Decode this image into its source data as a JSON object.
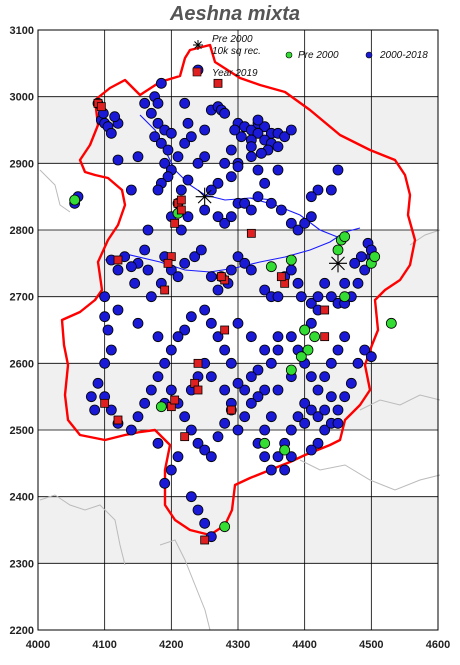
{
  "title": "Aeshna mixta",
  "axes": {
    "x_ticks": [
      "4000",
      "4100",
      "4200",
      "4300",
      "4400",
      "4500",
      "4600"
    ],
    "y_ticks": [
      "3100",
      "3000",
      "2900",
      "2800",
      "2700",
      "2600",
      "2500",
      "2400",
      "2300",
      "2200"
    ]
  },
  "legend": {
    "star_label_1": "Pre 2000",
    "star_label_2": "10k sq rec.",
    "green_label": "Pre 2000",
    "blue_label": "2000-2018",
    "red_label": "Year 2019"
  },
  "colors": {
    "boundary": "#ff0000",
    "river": "#1a1aff",
    "blue_dot": "#1a1ad6",
    "green_dot": "#33dd33",
    "red_square": "#e02020",
    "band": "#f0f0f0"
  },
  "chart_data": {
    "type": "scatter",
    "title": "Aeshna mixta",
    "xlim": [
      4000,
      4600
    ],
    "ylim": [
      2200,
      3100
    ],
    "grid": true,
    "series": [
      {
        "name": "2000-2018",
        "marker": "circle",
        "points": [
          [
            4090,
            2990
          ],
          [
            4095,
            2965
          ],
          [
            4100,
            2960
          ],
          [
            4105,
            2955
          ],
          [
            4098,
            2975
          ],
          [
            4110,
            2945
          ],
          [
            4120,
            2960
          ],
          [
            4115,
            2970
          ],
          [
            4175,
            3000
          ],
          [
            4180,
            2990
          ],
          [
            4170,
            2975
          ],
          [
            4180,
            2960
          ],
          [
            4190,
            2950
          ],
          [
            4200,
            2945
          ],
          [
            4175,
            2940
          ],
          [
            4185,
            2930
          ],
          [
            4195,
            2920
          ],
          [
            4210,
            2910
          ],
          [
            4190,
            2900
          ],
          [
            4200,
            2890
          ],
          [
            4220,
            2930
          ],
          [
            4225,
            2960
          ],
          [
            4230,
            2940
          ],
          [
            4250,
            2950
          ],
          [
            4260,
            2980
          ],
          [
            4270,
            2985
          ],
          [
            4275,
            2980
          ],
          [
            4280,
            2975
          ],
          [
            4220,
            2990
          ],
          [
            4240,
            3040
          ],
          [
            4185,
            3020
          ],
          [
            4160,
            2990
          ],
          [
            4300,
            2960
          ],
          [
            4310,
            2955
          ],
          [
            4320,
            2950
          ],
          [
            4330,
            2960
          ],
          [
            4340,
            2955
          ],
          [
            4350,
            2945
          ],
          [
            4330,
            2945
          ],
          [
            4320,
            2935
          ],
          [
            4340,
            2935
          ],
          [
            4350,
            2930
          ],
          [
            4360,
            2925
          ],
          [
            4345,
            2920
          ],
          [
            4335,
            2915
          ],
          [
            4320,
            2925
          ],
          [
            4360,
            2945
          ],
          [
            4370,
            2940
          ],
          [
            4380,
            2950
          ],
          [
            4330,
            2965
          ],
          [
            4305,
            2940
          ],
          [
            4295,
            2950
          ],
          [
            4290,
            2920
          ],
          [
            4280,
            2900
          ],
          [
            4300,
            2900
          ],
          [
            4250,
            2910
          ],
          [
            4240,
            2900
          ],
          [
            4225,
            2875
          ],
          [
            4215,
            2860
          ],
          [
            4195,
            2880
          ],
          [
            4185,
            2870
          ],
          [
            4180,
            2860
          ],
          [
            4150,
            2910
          ],
          [
            4120,
            2905
          ],
          [
            4140,
            2860
          ],
          [
            4200,
            2820
          ],
          [
            4210,
            2840
          ],
          [
            4225,
            2820
          ],
          [
            4215,
            2800
          ],
          [
            4250,
            2830
          ],
          [
            4270,
            2820
          ],
          [
            4280,
            2810
          ],
          [
            4290,
            2820
          ],
          [
            4300,
            2840
          ],
          [
            4310,
            2840
          ],
          [
            4320,
            2830
          ],
          [
            4330,
            2850
          ],
          [
            4340,
            2870
          ],
          [
            4350,
            2840
          ],
          [
            4365,
            2830
          ],
          [
            4380,
            2810
          ],
          [
            4390,
            2800
          ],
          [
            4400,
            2810
          ],
          [
            4410,
            2820
          ],
          [
            4360,
            2890
          ],
          [
            4330,
            2890
          ],
          [
            4320,
            2910
          ],
          [
            4300,
            2895
          ],
          [
            4290,
            2880
          ],
          [
            4270,
            2870
          ],
          [
            4260,
            2860
          ],
          [
            4165,
            2800
          ],
          [
            4160,
            2770
          ],
          [
            4150,
            2750
          ],
          [
            4140,
            2745
          ],
          [
            4130,
            2760
          ],
          [
            4110,
            2755
          ],
          [
            4120,
            2740
          ],
          [
            4145,
            2720
          ],
          [
            4165,
            2740
          ],
          [
            4170,
            2700
          ],
          [
            4185,
            2720
          ],
          [
            4190,
            2760
          ],
          [
            4200,
            2740
          ],
          [
            4210,
            2730
          ],
          [
            4220,
            2750
          ],
          [
            4235,
            2760
          ],
          [
            4245,
            2770
          ],
          [
            4260,
            2730
          ],
          [
            4275,
            2730
          ],
          [
            4285,
            2720
          ],
          [
            4270,
            2710
          ],
          [
            4290,
            2740
          ],
          [
            4300,
            2760
          ],
          [
            4310,
            2750
          ],
          [
            4320,
            2740
          ],
          [
            4340,
            2710
          ],
          [
            4350,
            2700
          ],
          [
            4360,
            2700
          ],
          [
            4370,
            2730
          ],
          [
            4380,
            2740
          ],
          [
            4390,
            2720
          ],
          [
            4395,
            2700
          ],
          [
            4410,
            2690
          ],
          [
            4420,
            2700
          ],
          [
            4430,
            2720
          ],
          [
            4440,
            2700
          ],
          [
            4450,
            2690
          ],
          [
            4460,
            2690
          ],
          [
            4470,
            2700
          ],
          [
            4480,
            2720
          ],
          [
            4490,
            2740
          ],
          [
            4500,
            2760
          ],
          [
            4495,
            2780
          ],
          [
            4500,
            2770
          ],
          [
            4485,
            2760
          ],
          [
            4475,
            2750
          ],
          [
            4460,
            2720
          ],
          [
            4420,
            2680
          ],
          [
            4410,
            2660
          ],
          [
            4400,
            2650
          ],
          [
            4380,
            2640
          ],
          [
            4360,
            2620
          ],
          [
            4350,
            2600
          ],
          [
            4330,
            2590
          ],
          [
            4320,
            2580
          ],
          [
            4340,
            2560
          ],
          [
            4330,
            2550
          ],
          [
            4310,
            2560
          ],
          [
            4300,
            2570
          ],
          [
            4290,
            2600
          ],
          [
            4280,
            2620
          ],
          [
            4270,
            2640
          ],
          [
            4260,
            2660
          ],
          [
            4250,
            2680
          ],
          [
            4230,
            2670
          ],
          [
            4220,
            2650
          ],
          [
            4210,
            2640
          ],
          [
            4200,
            2620
          ],
          [
            4190,
            2600
          ],
          [
            4180,
            2580
          ],
          [
            4170,
            2560
          ],
          [
            4160,
            2540
          ],
          [
            4150,
            2520
          ],
          [
            4140,
            2500
          ],
          [
            4120,
            2510
          ],
          [
            4110,
            2530
          ],
          [
            4100,
            2550
          ],
          [
            4090,
            2570
          ],
          [
            4080,
            2550
          ],
          [
            4085,
            2530
          ],
          [
            4100,
            2600
          ],
          [
            4110,
            2620
          ],
          [
            4105,
            2650
          ],
          [
            4100,
            2670
          ],
          [
            4200,
            2560
          ],
          [
            4210,
            2540
          ],
          [
            4220,
            2520
          ],
          [
            4230,
            2500
          ],
          [
            4240,
            2480
          ],
          [
            4250,
            2470
          ],
          [
            4260,
            2460
          ],
          [
            4270,
            2490
          ],
          [
            4280,
            2510
          ],
          [
            4290,
            2530
          ],
          [
            4300,
            2500
          ],
          [
            4310,
            2520
          ],
          [
            4320,
            2540
          ],
          [
            4330,
            2480
          ],
          [
            4340,
            2460
          ],
          [
            4350,
            2440
          ],
          [
            4360,
            2460
          ],
          [
            4370,
            2480
          ],
          [
            4380,
            2500
          ],
          [
            4390,
            2520
          ],
          [
            4400,
            2540
          ],
          [
            4410,
            2530
          ],
          [
            4420,
            2520
          ],
          [
            4430,
            2500
          ],
          [
            4440,
            2510
          ],
          [
            4450,
            2530
          ],
          [
            4460,
            2550
          ],
          [
            4470,
            2570
          ],
          [
            4480,
            2600
          ],
          [
            4490,
            2620
          ],
          [
            4500,
            2610
          ],
          [
            4460,
            2640
          ],
          [
            4450,
            2620
          ],
          [
            4440,
            2600
          ],
          [
            4430,
            2580
          ],
          [
            4420,
            2560
          ],
          [
            4410,
            2580
          ],
          [
            4400,
            2600
          ],
          [
            4390,
            2620
          ],
          [
            4380,
            2580
          ],
          [
            4360,
            2560
          ],
          [
            4350,
            2520
          ],
          [
            4340,
            2500
          ],
          [
            4400,
            2510
          ],
          [
            4430,
            2530
          ],
          [
            4440,
            2550
          ],
          [
            4450,
            2510
          ],
          [
            4420,
            2480
          ],
          [
            4410,
            2470
          ],
          [
            4380,
            2460
          ],
          [
            4370,
            2440
          ],
          [
            4190,
            2420
          ],
          [
            4200,
            2440
          ],
          [
            4210,
            2460
          ],
          [
            4180,
            2480
          ],
          [
            4190,
            2540
          ],
          [
            4230,
            2560
          ],
          [
            4240,
            2580
          ],
          [
            4250,
            2600
          ],
          [
            4260,
            2580
          ],
          [
            4280,
            2560
          ],
          [
            4290,
            2540
          ],
          [
            4260,
            2340
          ],
          [
            4250,
            2360
          ],
          [
            4240,
            2380
          ],
          [
            4230,
            2400
          ],
          [
            4055,
            2840
          ],
          [
            4060,
            2850
          ],
          [
            4100,
            2700
          ],
          [
            4120,
            2680
          ],
          [
            4150,
            2660
          ],
          [
            4180,
            2640
          ],
          [
            4300,
            2660
          ],
          [
            4320,
            2640
          ],
          [
            4340,
            2620
          ],
          [
            4360,
            2640
          ],
          [
            4450,
            2890
          ],
          [
            4440,
            2860
          ],
          [
            4420,
            2860
          ],
          [
            4410,
            2850
          ]
        ]
      },
      {
        "name": "Pre 2000",
        "marker": "circle",
        "points": [
          [
            4055,
            2845
          ],
          [
            4210,
            2825
          ],
          [
            4350,
            2745
          ],
          [
            4380,
            2755
          ],
          [
            4450,
            2770
          ],
          [
            4455,
            2785
          ],
          [
            4460,
            2790
          ],
          [
            4500,
            2750
          ],
          [
            4505,
            2760
          ],
          [
            4460,
            2700
          ],
          [
            4415,
            2640
          ],
          [
            4405,
            2620
          ],
          [
            4395,
            2610
          ],
          [
            4380,
            2590
          ],
          [
            4185,
            2535
          ],
          [
            4340,
            2480
          ],
          [
            4370,
            2470
          ],
          [
            4280,
            2355
          ],
          [
            4530,
            2660
          ],
          [
            4400,
            2650
          ]
        ]
      },
      {
        "name": "Year 2019",
        "marker": "square",
        "points": [
          [
            4090,
            2990
          ],
          [
            4095,
            2985
          ],
          [
            4210,
            2840
          ],
          [
            4215,
            2845
          ],
          [
            4205,
            2810
          ],
          [
            4215,
            2830
          ],
          [
            4320,
            2795
          ],
          [
            4120,
            2755
          ],
          [
            4200,
            2760
          ],
          [
            4195,
            2750
          ],
          [
            4190,
            2710
          ],
          [
            4280,
            2725
          ],
          [
            4275,
            2730
          ],
          [
            4370,
            2720
          ],
          [
            4365,
            2730
          ],
          [
            4280,
            2650
          ],
          [
            4240,
            2600
          ],
          [
            4235,
            2570
          ],
          [
            4240,
            2560
          ],
          [
            4430,
            2640
          ],
          [
            4430,
            2680
          ],
          [
            4100,
            2540
          ],
          [
            4120,
            2515
          ],
          [
            4200,
            2535
          ],
          [
            4205,
            2545
          ],
          [
            4290,
            2530
          ],
          [
            4220,
            2490
          ],
          [
            4250,
            2335
          ],
          [
            4270,
            3020
          ]
        ]
      },
      {
        "name": "10k sq rec.",
        "marker": "star",
        "points": [
          [
            4250,
            2850
          ],
          [
            4450,
            2750
          ]
        ]
      }
    ]
  }
}
